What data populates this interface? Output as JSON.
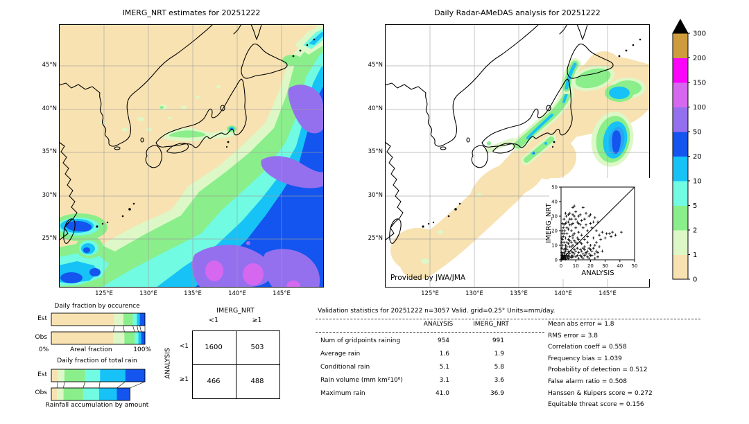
{
  "left_map": {
    "title": "IMERG_NRT estimates for 20251222",
    "lat_labels": [
      "45°N",
      "40°N",
      "35°N",
      "30°N",
      "25°N"
    ],
    "lon_labels": [
      "125°E",
      "130°E",
      "135°E",
      "140°E",
      "145°E"
    ]
  },
  "right_map": {
    "title": "Daily Radar-AMeDAS analysis for 20251222",
    "credit": "Provided by JWA/JMA",
    "lat_labels": [
      "45°N",
      "40°N",
      "35°N",
      "30°N",
      "25°N"
    ],
    "lon_labels": [
      "125°E",
      "130°E",
      "135°E",
      "140°E",
      "145°E"
    ]
  },
  "colorbar": {
    "levels": [
      "0",
      "1",
      "2",
      "5",
      "10",
      "20",
      "50",
      "100",
      "150",
      "200",
      "300"
    ],
    "colors": [
      "#f8e2b1",
      "#ddf8c6",
      "#8aee8a",
      "#70fbe2",
      "#16c2f6",
      "#1355ee",
      "#9470ee",
      "#d668f0",
      "#fa05fa",
      "#cf9c3d"
    ],
    "overflow_color": "#000000"
  },
  "occurrence": {
    "title": "Daily fraction by occurence",
    "rows": [
      "Est",
      "Obs"
    ],
    "axis_left": "0%",
    "axis_label": "Areal fraction",
    "axis_right": "100%"
  },
  "totalrain": {
    "title": "Daily fraction of total rain",
    "rows": [
      "Est",
      "Obs"
    ],
    "caption": "Rainfall accumulation by amount"
  },
  "contingency": {
    "col_title": "IMERG_NRT",
    "row_title": "ANALYSIS",
    "col_labels": [
      "<1",
      "≥1"
    ],
    "row_labels": [
      "<1",
      "≥1"
    ],
    "values": [
      [
        "1600",
        "503"
      ],
      [
        "466",
        "488"
      ]
    ]
  },
  "stats": {
    "header": "Validation statistics for 20251222  n=3057 Valid. grid=0.25° Units=mm/day.",
    "col1": "ANALYSIS",
    "col2": "IMERG_NRT",
    "rows": [
      {
        "label": "Num of gridpoints raining",
        "analysis": "954",
        "imerg": "991"
      },
      {
        "label": "Average rain",
        "analysis": "1.6",
        "imerg": "1.9"
      },
      {
        "label": "Conditional rain",
        "analysis": "5.1",
        "imerg": "5.8"
      },
      {
        "label": "Rain volume (mm km²10⁶)",
        "analysis": "3.1",
        "imerg": "3.6"
      },
      {
        "label": "Maximum rain",
        "analysis": "41.0",
        "imerg": "36.9"
      }
    ],
    "metrics": [
      "Mean abs error =  1.8",
      "RMS error =  3.8",
      "Correlation coeff =  0.558",
      "Frequency bias =  1.039",
      "Probability of detection =  0.512",
      "False alarm ratio =  0.508",
      "Hanssen & Kuipers score =  0.272",
      "Equitable threat score =  0.156"
    ]
  },
  "chart_data": [
    {
      "type": "bar",
      "subtype": "stacked-horizontal",
      "title": "Daily fraction by occurence",
      "xlabel": "Areal fraction",
      "xlim": [
        "0%",
        "100%"
      ],
      "categories": [
        "Est",
        "Obs"
      ],
      "series": [
        {
          "name": "Est",
          "fractions": [
            0.67,
            0.1,
            0.1,
            0.045,
            0.03,
            0.055
          ]
        },
        {
          "name": "Obs",
          "fractions": [
            0.665,
            0.115,
            0.11,
            0.04,
            0.03,
            0.04
          ]
        }
      ],
      "colors": [
        "#f8e2b1",
        "#ddf8c6",
        "#8aee8a",
        "#70fbe2",
        "#16c2f6",
        "#1355ee"
      ]
    },
    {
      "type": "bar",
      "subtype": "stacked-horizontal",
      "title": "Daily fraction of total rain",
      "caption": "Rainfall accumulation by amount",
      "categories": [
        "Est",
        "Obs"
      ],
      "series": [
        {
          "name": "Est",
          "fractions": [
            0.07,
            0.07,
            0.22,
            0.16,
            0.27,
            0.21
          ]
        },
        {
          "name": "Obs",
          "fractions": [
            0.06,
            0.07,
            0.21,
            0.17,
            0.19,
            0.14
          ]
        }
      ],
      "colors": [
        "#f8e2b1",
        "#ddf8c6",
        "#8aee8a",
        "#70fbe2",
        "#16c2f6",
        "#1355ee"
      ]
    },
    {
      "type": "table",
      "name": "contingency",
      "col_title": "IMERG_NRT",
      "row_title": "ANALYSIS",
      "col_labels": [
        "<1",
        "≥1"
      ],
      "row_labels": [
        "<1",
        "≥1"
      ],
      "values": [
        [
          1600,
          503
        ],
        [
          466,
          488
        ]
      ]
    },
    {
      "type": "scatter",
      "xlabel": "ANALYSIS",
      "ylabel": "IMERG_NRT",
      "xlim": [
        0,
        50
      ],
      "ylim": [
        0,
        50
      ],
      "ticks": [
        0,
        10,
        20,
        30,
        40,
        50
      ],
      "diagonal": true,
      "points": [
        [
          0.3,
          0.5
        ],
        [
          0.5,
          1
        ],
        [
          0.5,
          3
        ],
        [
          0.5,
          5
        ],
        [
          0.5,
          8
        ],
        [
          0.5,
          12
        ],
        [
          0.5,
          15
        ],
        [
          0.8,
          2
        ],
        [
          0.8,
          18
        ],
        [
          1,
          0.5
        ],
        [
          1,
          1.5
        ],
        [
          1,
          4
        ],
        [
          1,
          10
        ],
        [
          1,
          14
        ],
        [
          1,
          20
        ],
        [
          1,
          25
        ],
        [
          1.2,
          3
        ],
        [
          1.5,
          0.8
        ],
        [
          1.5,
          2.2
        ],
        [
          1.5,
          16
        ],
        [
          1.5,
          22
        ],
        [
          2,
          1
        ],
        [
          2,
          3
        ],
        [
          2,
          5
        ],
        [
          2,
          7
        ],
        [
          2,
          12
        ],
        [
          2,
          18
        ],
        [
          2,
          24
        ],
        [
          2,
          28
        ],
        [
          2.5,
          1.5
        ],
        [
          2.5,
          4
        ],
        [
          2.5,
          20
        ],
        [
          3,
          0.5
        ],
        [
          3,
          2
        ],
        [
          3,
          6
        ],
        [
          3,
          8
        ],
        [
          3,
          10
        ],
        [
          3,
          15
        ],
        [
          3,
          25
        ],
        [
          3,
          32
        ],
        [
          3.5,
          3
        ],
        [
          3.5,
          30
        ],
        [
          4,
          1
        ],
        [
          4,
          4
        ],
        [
          4,
          7
        ],
        [
          4,
          9
        ],
        [
          4,
          12
        ],
        [
          4,
          18
        ],
        [
          4,
          22
        ],
        [
          4,
          26
        ],
        [
          4.5,
          2
        ],
        [
          5,
          0.8
        ],
        [
          5,
          3
        ],
        [
          5,
          5.5
        ],
        [
          5,
          11
        ],
        [
          5,
          14
        ],
        [
          5,
          21
        ],
        [
          5,
          26
        ],
        [
          5,
          31
        ],
        [
          6,
          2
        ],
        [
          6,
          4.5
        ],
        [
          6,
          9
        ],
        [
          6,
          13
        ],
        [
          6,
          16
        ],
        [
          6,
          24
        ],
        [
          6,
          28
        ],
        [
          6,
          32
        ],
        [
          7,
          1.5
        ],
        [
          7,
          6
        ],
        [
          7,
          9
        ],
        [
          7,
          12
        ],
        [
          7,
          20
        ],
        [
          7,
          24
        ],
        [
          7,
          28
        ],
        [
          7.5,
          3
        ],
        [
          8,
          2
        ],
        [
          8,
          5
        ],
        [
          8,
          10
        ],
        [
          8,
          15
        ],
        [
          8,
          17
        ],
        [
          8,
          25
        ],
        [
          8,
          31
        ],
        [
          8,
          36
        ],
        [
          9,
          4
        ],
        [
          9,
          7
        ],
        [
          9,
          13
        ],
        [
          9,
          18
        ],
        [
          9,
          30
        ],
        [
          9,
          37
        ],
        [
          10,
          2
        ],
        [
          10,
          6
        ],
        [
          10,
          12
        ],
        [
          10,
          22
        ],
        [
          10,
          28
        ],
        [
          10,
          33
        ],
        [
          11,
          3
        ],
        [
          11,
          8
        ],
        [
          11,
          11
        ],
        [
          11,
          15
        ],
        [
          11,
          26
        ],
        [
          12,
          1
        ],
        [
          12,
          5
        ],
        [
          12,
          14
        ],
        [
          12,
          19
        ],
        [
          12,
          25
        ],
        [
          12,
          30
        ],
        [
          13,
          3
        ],
        [
          13,
          7
        ],
        [
          13,
          12
        ],
        [
          13,
          24
        ],
        [
          13,
          31
        ],
        [
          14,
          2
        ],
        [
          14,
          6
        ],
        [
          14,
          11
        ],
        [
          14,
          17
        ],
        [
          14,
          27
        ],
        [
          15,
          1
        ],
        [
          15,
          4
        ],
        [
          15,
          8
        ],
        [
          15,
          22
        ],
        [
          15,
          36
        ],
        [
          16,
          3
        ],
        [
          16,
          7
        ],
        [
          16,
          9
        ],
        [
          16,
          14
        ],
        [
          16,
          28
        ],
        [
          17,
          4
        ],
        [
          17,
          5
        ],
        [
          17,
          24
        ],
        [
          17,
          32
        ],
        [
          18,
          2
        ],
        [
          18,
          6
        ],
        [
          18,
          12
        ],
        [
          18,
          16
        ],
        [
          18,
          20
        ],
        [
          19,
          1
        ],
        [
          19,
          4
        ],
        [
          19,
          8
        ],
        [
          19,
          30
        ],
        [
          20,
          3
        ],
        [
          20,
          7
        ],
        [
          20,
          10
        ],
        [
          20,
          25
        ],
        [
          20,
          31
        ],
        [
          21,
          3
        ],
        [
          21,
          6
        ],
        [
          21,
          22
        ],
        [
          22,
          8
        ],
        [
          22,
          15
        ],
        [
          22,
          26
        ],
        [
          23,
          1
        ],
        [
          23,
          4
        ],
        [
          23,
          10
        ],
        [
          23,
          29
        ],
        [
          24,
          6
        ],
        [
          24,
          12
        ],
        [
          24,
          20
        ],
        [
          25,
          2
        ],
        [
          25,
          5
        ],
        [
          25,
          26
        ],
        [
          26,
          9
        ],
        [
          26,
          17
        ],
        [
          27,
          14
        ],
        [
          28,
          6
        ],
        [
          28,
          19
        ],
        [
          30,
          15
        ],
        [
          31,
          18
        ],
        [
          33,
          18
        ],
        [
          34,
          16
        ],
        [
          35,
          19
        ],
        [
          37,
          17
        ],
        [
          41,
          19
        ]
      ]
    }
  ]
}
